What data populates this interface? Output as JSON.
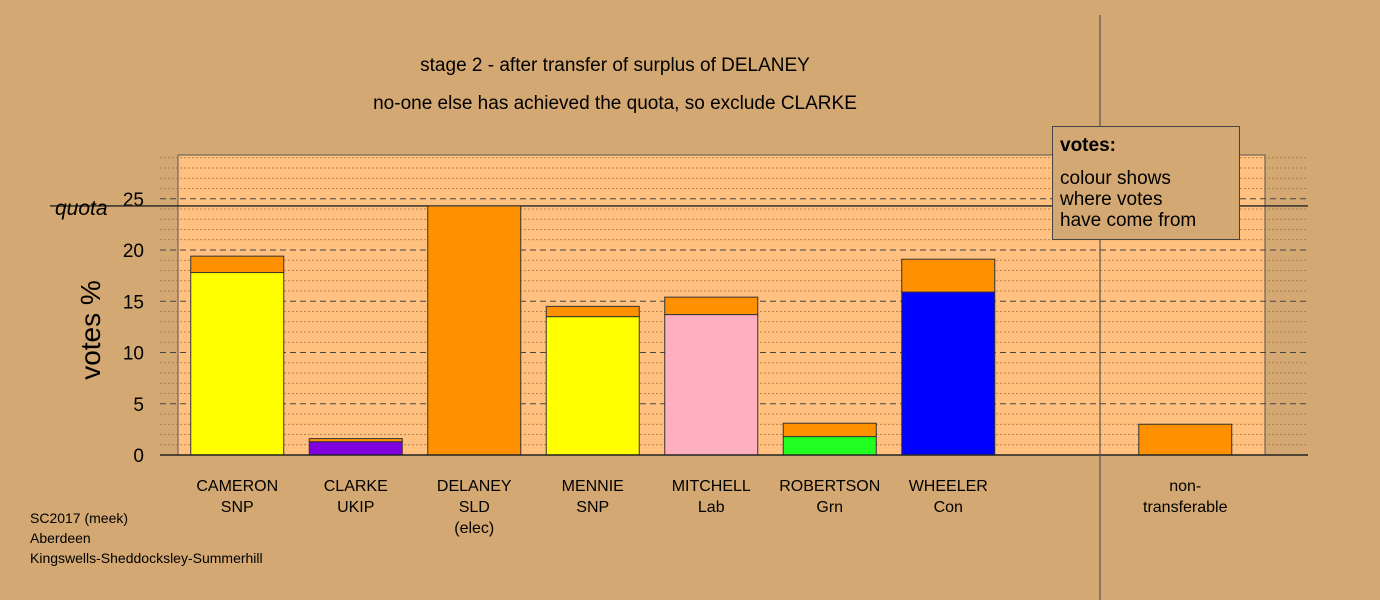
{
  "title_lines": [
    "stage 2 - after transfer of surplus of DELANEY",
    "no-one else has achieved the quota, so exclude CLARKE"
  ],
  "legend": {
    "title": "votes:",
    "lines": [
      "colour shows",
      "where votes",
      "have come from"
    ]
  },
  "footer": [
    "SC2017 (meek)",
    "Aberdeen",
    "Kingswells-Sheddocksley-Summerhill"
  ],
  "colors": {
    "background": "#d4a872",
    "plot_area": "#ffc080",
    "SNP": "#ffff00",
    "UKIP": "#8000e0",
    "SLD": "#ff9000",
    "Lab": "#ffb0c0",
    "Grn": "#20ff20",
    "Con": "#0000ff"
  },
  "chart_data": {
    "type": "bar",
    "stacked": true,
    "ylabel": "votes %",
    "ylim": [
      0,
      29.5
    ],
    "yticks": [
      0,
      5,
      10,
      15,
      20,
      25
    ],
    "quota": {
      "label": "quota",
      "value": 24.3
    },
    "grid": true,
    "categories": [
      {
        "lines": [
          "CAMERON",
          "SNP"
        ]
      },
      {
        "lines": [
          "CLARKE",
          "UKIP"
        ]
      },
      {
        "lines": [
          "DELANEY",
          "SLD",
          "(elec)"
        ]
      },
      {
        "lines": [
          "MENNIE",
          "SNP"
        ]
      },
      {
        "lines": [
          "MITCHELL",
          "Lab"
        ]
      },
      {
        "lines": [
          "ROBERTSON",
          "Grn"
        ]
      },
      {
        "lines": [
          "WHEELER",
          "Con"
        ]
      },
      {
        "lines": []
      },
      {
        "lines": [
          "non-",
          "transferable"
        ]
      }
    ],
    "series": [
      {
        "color_key": "first_preference",
        "colors": [
          "SNP",
          "UKIP",
          "SLD",
          "SNP",
          "Lab",
          "Grn",
          "Con",
          "SLD",
          "SLD"
        ],
        "values": [
          17.8,
          1.3,
          24.3,
          13.5,
          13.7,
          1.8,
          15.9,
          0,
          0
        ]
      },
      {
        "color_key": "transfer_from_DELANEY",
        "colors": [
          "SLD",
          "SLD",
          "SLD",
          "SLD",
          "SLD",
          "SLD",
          "SLD",
          "SLD",
          "SLD"
        ],
        "values": [
          1.6,
          0.3,
          0,
          1.0,
          1.7,
          1.3,
          3.2,
          0,
          3.0
        ]
      }
    ]
  }
}
